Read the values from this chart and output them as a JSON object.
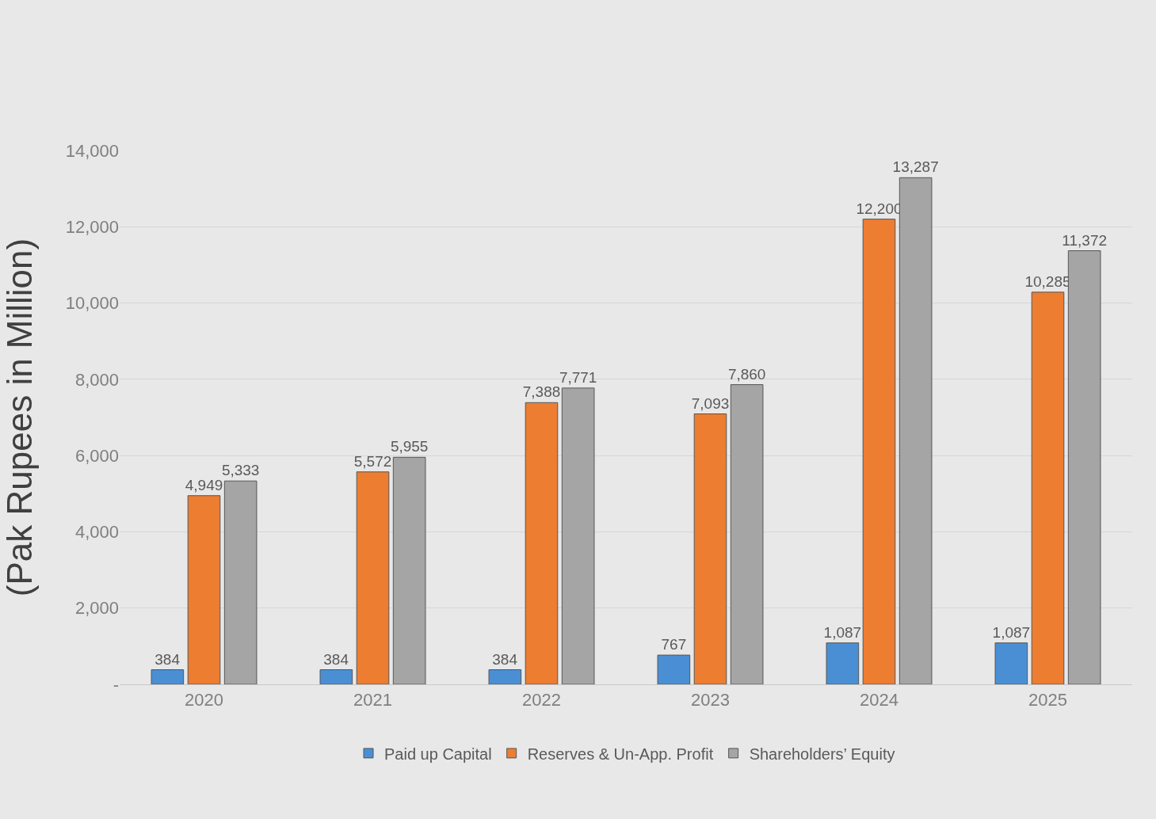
{
  "chart_data": {
    "type": "bar",
    "ylabel": "(Pak Rupees in Million)",
    "categories": [
      "2020",
      "2021",
      "2022",
      "2023",
      "2024",
      "2025"
    ],
    "series": [
      {
        "name": "Paid up Capital",
        "color": "#4a8fd4",
        "values": [
          384,
          384,
          384,
          767,
          1087,
          1087
        ],
        "value_labels": [
          "384",
          "384",
          "384",
          "767",
          "1,087",
          "1,087"
        ]
      },
      {
        "name": "Reserves & Un-App. Profit",
        "color": "#ed7d31",
        "values": [
          4949,
          5572,
          7388,
          7093,
          12200,
          10285
        ],
        "value_labels": [
          "4,949",
          "5,572",
          "7,388",
          "7,093",
          "12,200",
          "10,285"
        ]
      },
      {
        "name": "Shareholders’ Equity",
        "color": "#a5a5a5",
        "values": [
          5333,
          5955,
          7771,
          7860,
          13287,
          11372
        ],
        "value_labels": [
          "5,333",
          "5,955",
          "7,771",
          "7,860",
          "13,287",
          "11,372"
        ]
      }
    ],
    "ylim": [
      0,
      14000
    ],
    "yticks": [
      {
        "value": 0,
        "label": "-"
      },
      {
        "value": 2000,
        "label": "2,000"
      },
      {
        "value": 4000,
        "label": "4,000"
      },
      {
        "value": 6000,
        "label": "6,000"
      },
      {
        "value": 8000,
        "label": "8,000"
      },
      {
        "value": 10000,
        "label": "10,000"
      },
      {
        "value": 12000,
        "label": "12,000"
      },
      {
        "value": 14000,
        "label": "14,000"
      }
    ],
    "grid": "y",
    "legend": "bottom"
  }
}
